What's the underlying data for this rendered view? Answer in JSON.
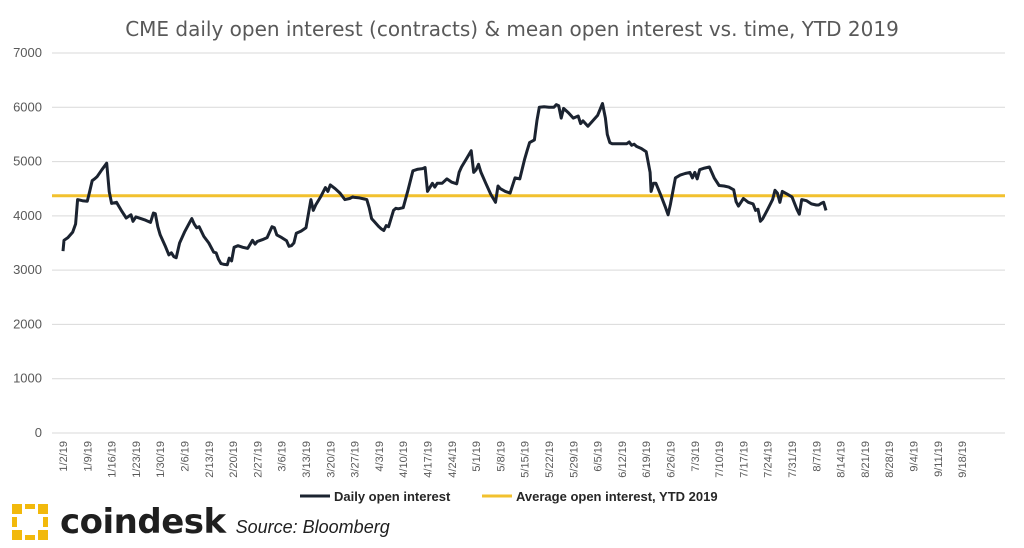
{
  "chart_data": {
    "type": "line",
    "title": "CME daily open interest (contracts) & mean open interest vs. time, YTD 2019",
    "ylim": [
      0,
      7000
    ],
    "y_ticks": [
      "0",
      "1000",
      "2000",
      "3000",
      "4000",
      "5000",
      "6000",
      "7000"
    ],
    "x_ticks": [
      "1/2/19",
      "1/9/19",
      "1/16/19",
      "1/23/19",
      "1/30/19",
      "2/6/19",
      "2/13/19",
      "2/20/19",
      "2/27/19",
      "3/6/19",
      "3/13/19",
      "3/20/19",
      "3/27/19",
      "4/3/19",
      "4/10/19",
      "4/17/19",
      "4/24/19",
      "5/1/19",
      "5/8/19",
      "5/15/19",
      "5/22/19",
      "5/29/19",
      "6/5/19",
      "6/12/19",
      "6/19/19",
      "6/26/19",
      "7/3/19",
      "7/10/19",
      "7/17/19",
      "7/24/19",
      "7/31/19",
      "8/7/19",
      "8/14/19",
      "8/21/19",
      "8/28/19",
      "9/4/19",
      "9/11/19",
      "9/18/19"
    ],
    "grid": true,
    "legend_position": "bottom",
    "series": [
      {
        "name": "Daily open interest",
        "color": "#1b2330",
        "points": [
          [
            0,
            3350
          ],
          [
            0.2,
            3550
          ],
          [
            1,
            3600
          ],
          [
            2,
            3700
          ],
          [
            2.6,
            3850
          ],
          [
            3,
            4300
          ],
          [
            4,
            4280
          ],
          [
            5,
            4270
          ],
          [
            5.5,
            4450
          ],
          [
            6,
            4650
          ],
          [
            6.5,
            4680
          ],
          [
            7,
            4720
          ],
          [
            8,
            4850
          ],
          [
            9,
            4970
          ],
          [
            9.5,
            4450
          ],
          [
            10,
            4230
          ],
          [
            11,
            4250
          ],
          [
            12,
            4100
          ],
          [
            13,
            3960
          ],
          [
            14,
            4020
          ],
          [
            14.4,
            3900
          ],
          [
            15,
            3980
          ],
          [
            16,
            3950
          ],
          [
            17,
            3920
          ],
          [
            18,
            3880
          ],
          [
            18.6,
            4050
          ],
          [
            19,
            4040
          ],
          [
            19.5,
            3800
          ],
          [
            20,
            3650
          ],
          [
            21,
            3450
          ],
          [
            21.8,
            3280
          ],
          [
            22.3,
            3320
          ],
          [
            22.8,
            3250
          ],
          [
            23.3,
            3230
          ],
          [
            24,
            3500
          ],
          [
            25,
            3700
          ],
          [
            26,
            3870
          ],
          [
            26.5,
            3950
          ],
          [
            27,
            3850
          ],
          [
            27.5,
            3780
          ],
          [
            28,
            3800
          ],
          [
            29,
            3620
          ],
          [
            30,
            3500
          ],
          [
            31,
            3330
          ],
          [
            31.5,
            3320
          ],
          [
            32,
            3200
          ],
          [
            32.5,
            3120
          ],
          [
            33,
            3110
          ],
          [
            33.8,
            3100
          ],
          [
            34.2,
            3220
          ],
          [
            34.7,
            3170
          ],
          [
            35.2,
            3420
          ],
          [
            36,
            3450
          ],
          [
            37,
            3420
          ],
          [
            38,
            3400
          ],
          [
            39,
            3550
          ],
          [
            39.5,
            3480
          ],
          [
            40,
            3530
          ],
          [
            41,
            3560
          ],
          [
            42,
            3600
          ],
          [
            43,
            3800
          ],
          [
            43.5,
            3780
          ],
          [
            44,
            3650
          ],
          [
            45,
            3600
          ],
          [
            46,
            3540
          ],
          [
            46.5,
            3440
          ],
          [
            47,
            3450
          ],
          [
            47.5,
            3500
          ],
          [
            48,
            3680
          ],
          [
            49,
            3720
          ],
          [
            50,
            3780
          ],
          [
            51,
            4300
          ],
          [
            51.5,
            4100
          ],
          [
            52,
            4200
          ],
          [
            53,
            4350
          ],
          [
            54,
            4520
          ],
          [
            54.5,
            4450
          ],
          [
            55,
            4570
          ],
          [
            56,
            4500
          ],
          [
            57,
            4420
          ],
          [
            58,
            4300
          ],
          [
            59,
            4320
          ],
          [
            59.6,
            4350
          ],
          [
            60,
            4340
          ],
          [
            61,
            4330
          ],
          [
            62,
            4310
          ],
          [
            62.5,
            4300
          ],
          [
            63,
            4150
          ],
          [
            63.5,
            3950
          ],
          [
            64,
            3900
          ],
          [
            65,
            3800
          ],
          [
            65.5,
            3760
          ],
          [
            66,
            3730
          ],
          [
            66.5,
            3820
          ],
          [
            67,
            3800
          ],
          [
            68,
            4100
          ],
          [
            68.5,
            4140
          ],
          [
            69,
            4130
          ],
          [
            70,
            4150
          ],
          [
            71,
            4480
          ],
          [
            72,
            4830
          ],
          [
            73,
            4860
          ],
          [
            74,
            4870
          ],
          [
            74.5,
            4890
          ],
          [
            75,
            4450
          ],
          [
            76,
            4600
          ],
          [
            76.5,
            4530
          ],
          [
            77,
            4600
          ],
          [
            78,
            4600
          ],
          [
            79,
            4680
          ],
          [
            80,
            4620
          ],
          [
            81,
            4590
          ],
          [
            81.5,
            4800
          ],
          [
            82,
            4900
          ],
          [
            83,
            5050
          ],
          [
            84,
            5200
          ],
          [
            84.5,
            4800
          ],
          [
            85,
            4850
          ],
          [
            85.5,
            4950
          ],
          [
            86,
            4800
          ],
          [
            87,
            4600
          ],
          [
            88,
            4400
          ],
          [
            89,
            4250
          ],
          [
            89.5,
            4550
          ],
          [
            90,
            4500
          ],
          [
            91,
            4450
          ],
          [
            92,
            4420
          ],
          [
            93,
            4700
          ],
          [
            94,
            4680
          ],
          [
            95,
            5050
          ],
          [
            95.5,
            5200
          ],
          [
            96,
            5350
          ],
          [
            97,
            5400
          ],
          [
            97.5,
            5750
          ],
          [
            98,
            6000
          ],
          [
            99,
            6010
          ],
          [
            100,
            6000
          ],
          [
            101,
            6000
          ],
          [
            101.5,
            6050
          ],
          [
            102,
            6030
          ],
          [
            102.5,
            5800
          ],
          [
            103,
            5980
          ],
          [
            104,
            5900
          ],
          [
            105,
            5800
          ],
          [
            106,
            5840
          ],
          [
            106.5,
            5700
          ],
          [
            107,
            5750
          ],
          [
            108,
            5650
          ],
          [
            109,
            5750
          ],
          [
            110,
            5850
          ],
          [
            111,
            6070
          ],
          [
            111.6,
            5800
          ],
          [
            112,
            5500
          ],
          [
            112.5,
            5350
          ],
          [
            113,
            5330
          ],
          [
            114,
            5330
          ],
          [
            115,
            5330
          ],
          [
            116,
            5330
          ],
          [
            116.5,
            5360
          ],
          [
            117,
            5300
          ],
          [
            117.5,
            5320
          ],
          [
            118,
            5280
          ],
          [
            119,
            5240
          ],
          [
            120,
            5180
          ],
          [
            120.8,
            4800
          ],
          [
            121,
            4450
          ],
          [
            121.5,
            4600
          ],
          [
            122,
            4600
          ],
          [
            123,
            4380
          ],
          [
            124,
            4150
          ],
          [
            124.5,
            4020
          ],
          [
            125,
            4220
          ],
          [
            126,
            4700
          ],
          [
            127,
            4750
          ],
          [
            128,
            4780
          ],
          [
            129,
            4800
          ],
          [
            129.5,
            4700
          ],
          [
            130,
            4800
          ],
          [
            130.5,
            4680
          ],
          [
            131,
            4850
          ],
          [
            132,
            4880
          ],
          [
            133,
            4900
          ],
          [
            134,
            4700
          ],
          [
            135,
            4560
          ],
          [
            136,
            4550
          ],
          [
            137,
            4530
          ],
          [
            138,
            4480
          ],
          [
            138.5,
            4260
          ],
          [
            139,
            4180
          ],
          [
            140,
            4320
          ],
          [
            141,
            4250
          ],
          [
            142,
            4220
          ],
          [
            142.5,
            4100
          ],
          [
            143,
            4120
          ],
          [
            143.5,
            3900
          ],
          [
            144,
            3950
          ],
          [
            145,
            4120
          ],
          [
            146,
            4300
          ],
          [
            146.5,
            4470
          ],
          [
            147,
            4420
          ],
          [
            147.5,
            4250
          ],
          [
            148,
            4450
          ],
          [
            149,
            4400
          ],
          [
            150,
            4350
          ],
          [
            151,
            4120
          ],
          [
            151.5,
            4030
          ],
          [
            152,
            4300
          ],
          [
            153,
            4280
          ],
          [
            154,
            4220
          ],
          [
            155,
            4200
          ],
          [
            155.5,
            4200
          ],
          [
            156,
            4230
          ],
          [
            156.5,
            4250
          ],
          [
            157,
            4100
          ]
        ]
      },
      {
        "name": "Average open interest, YTD 2019",
        "color": "#f2c12e",
        "constant": 4370
      }
    ]
  },
  "branding": {
    "logo_text": "coindesk",
    "source_text": "Source: Bloomberg"
  }
}
